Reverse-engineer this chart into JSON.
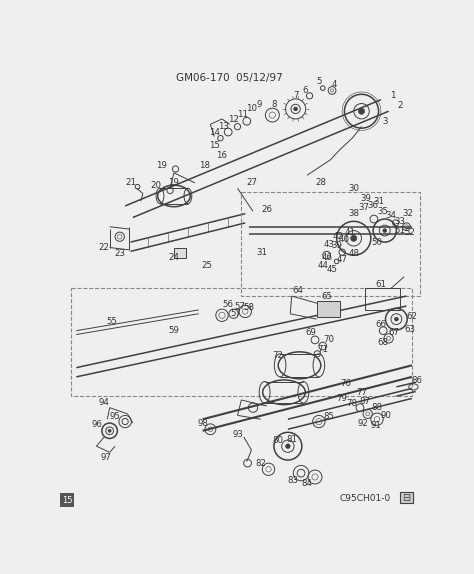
{
  "title": "GM06-170  05/12/97",
  "subtitle_code": "C95CH01-0",
  "bg_color": "#efefef",
  "fig_width": 4.74,
  "fig_height": 5.74,
  "dpi": 100,
  "lc": "#404040",
  "lc_light": "#888888",
  "title_fontsize": 7.5,
  "label_fontsize": 6.2,
  "label_color": "#333333"
}
